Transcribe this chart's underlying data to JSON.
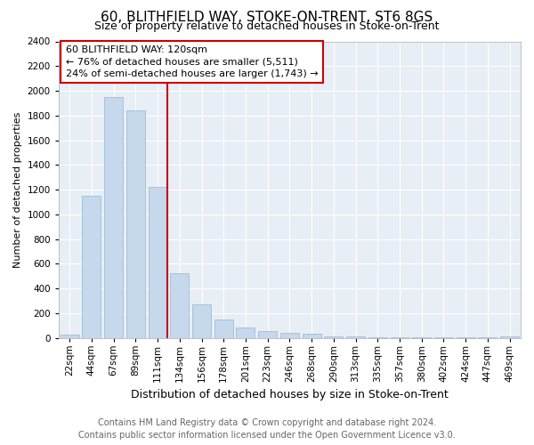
{
  "title": "60, BLITHFIELD WAY, STOKE-ON-TRENT, ST6 8GS",
  "subtitle": "Size of property relative to detached houses in Stoke-on-Trent",
  "xlabel": "Distribution of detached houses by size in Stoke-on-Trent",
  "ylabel": "Number of detached properties",
  "categories": [
    "22sqm",
    "44sqm",
    "67sqm",
    "89sqm",
    "111sqm",
    "134sqm",
    "156sqm",
    "178sqm",
    "201sqm",
    "223sqm",
    "246sqm",
    "268sqm",
    "290sqm",
    "313sqm",
    "335sqm",
    "357sqm",
    "380sqm",
    "402sqm",
    "424sqm",
    "447sqm",
    "469sqm"
  ],
  "values": [
    25,
    1150,
    1950,
    1840,
    1220,
    520,
    270,
    150,
    80,
    55,
    40,
    30,
    12,
    8,
    5,
    4,
    3,
    2,
    1,
    1,
    8
  ],
  "bar_color": "#c5d8ec",
  "bar_edge_color": "#a0bdd8",
  "highlight_index": 4,
  "highlight_color": "#cc0000",
  "annotation_title": "60 BLITHFIELD WAY: 120sqm",
  "annotation_line1": "← 76% of detached houses are smaller (5,511)",
  "annotation_line2": "24% of semi-detached houses are larger (1,743) →",
  "annotation_box_color": "#cc0000",
  "ylim": [
    0,
    2400
  ],
  "yticks": [
    0,
    200,
    400,
    600,
    800,
    1000,
    1200,
    1400,
    1600,
    1800,
    2000,
    2200,
    2400
  ],
  "bg_color": "#e8eef5",
  "footer_line1": "Contains HM Land Registry data © Crown copyright and database right 2024.",
  "footer_line2": "Contains public sector information licensed under the Open Government Licence v3.0.",
  "title_fontsize": 11,
  "subtitle_fontsize": 9,
  "xlabel_fontsize": 9,
  "ylabel_fontsize": 8,
  "tick_fontsize": 7.5,
  "footer_fontsize": 7,
  "annot_fontsize": 8
}
